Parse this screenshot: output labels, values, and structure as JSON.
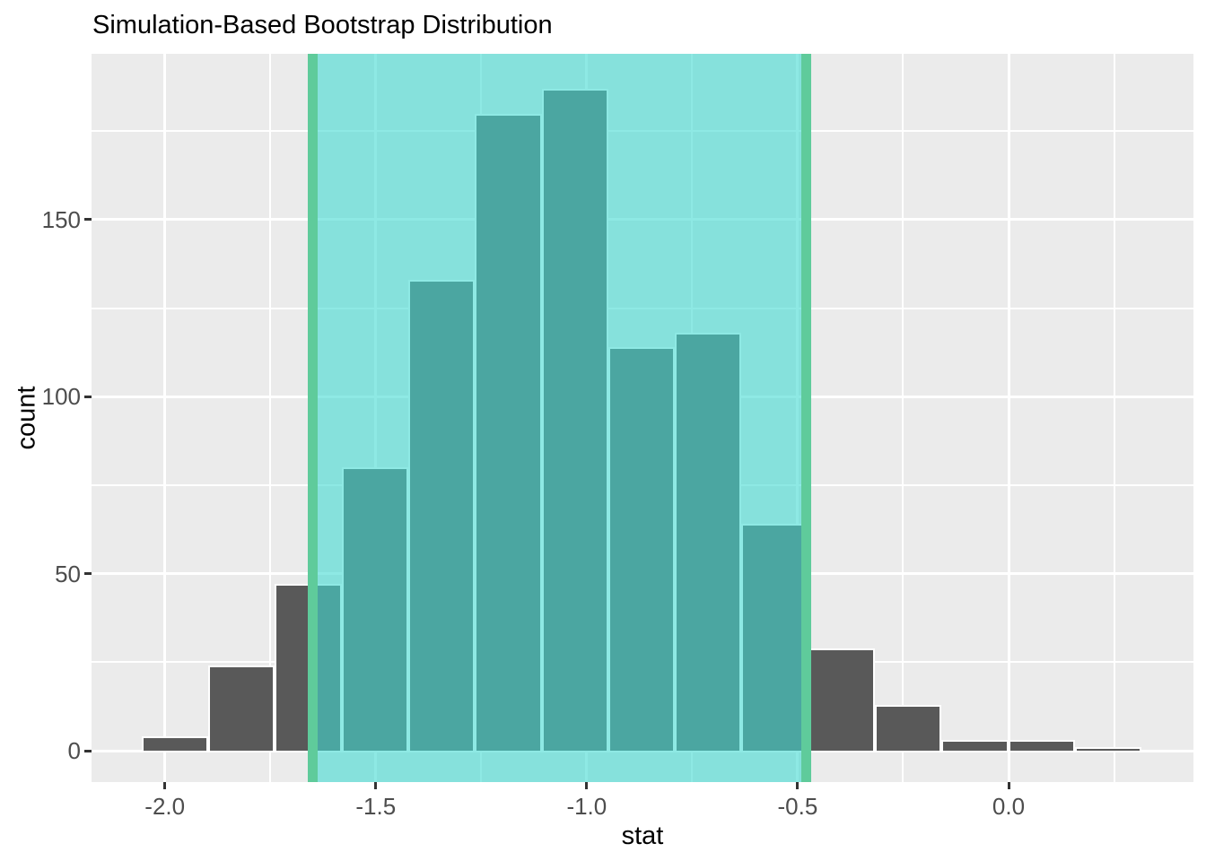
{
  "chart_data": {
    "type": "histogram",
    "title": "Simulation-Based Bootstrap Distribution",
    "xlabel": "stat",
    "ylabel": "count",
    "legend": "none",
    "grid": "major-and-minor-white-on-gray",
    "x_axis_range": [
      -2.17,
      0.44
    ],
    "y_axis_range": [
      0,
      197
    ],
    "x_ticks": [
      {
        "value": -2.0,
        "label": "-2.0"
      },
      {
        "value": -1.5,
        "label": "-1.5"
      },
      {
        "value": -1.0,
        "label": "-1.0"
      },
      {
        "value": -0.5,
        "label": "-0.5"
      },
      {
        "value": 0.0,
        "label": "0.0"
      }
    ],
    "y_ticks": [
      {
        "value": 0,
        "label": "0"
      },
      {
        "value": 50,
        "label": "50"
      },
      {
        "value": 100,
        "label": "100"
      },
      {
        "value": 150,
        "label": "150"
      }
    ],
    "x_minor": [
      -1.75,
      -1.25,
      -0.75,
      -0.25,
      0.25
    ],
    "y_minor": [
      25,
      75,
      125,
      175
    ],
    "bins": [
      {
        "x0": -2.055,
        "x1": -1.897,
        "count": 4
      },
      {
        "x0": -1.897,
        "x1": -1.739,
        "count": 24
      },
      {
        "x0": -1.739,
        "x1": -1.581,
        "count": 47
      },
      {
        "x0": -1.581,
        "x1": -1.423,
        "count": 80
      },
      {
        "x0": -1.423,
        "x1": -1.265,
        "count": 133
      },
      {
        "x0": -1.265,
        "x1": -1.107,
        "count": 180
      },
      {
        "x0": -1.107,
        "x1": -0.949,
        "count": 187
      },
      {
        "x0": -0.949,
        "x1": -0.791,
        "count": 114
      },
      {
        "x0": -0.791,
        "x1": -0.633,
        "count": 118
      },
      {
        "x0": -0.633,
        "x1": -0.475,
        "count": 64
      },
      {
        "x0": -0.475,
        "x1": -0.317,
        "count": 29
      },
      {
        "x0": -0.317,
        "x1": -0.159,
        "count": 13
      },
      {
        "x0": -0.159,
        "x1": -0.001,
        "count": 3
      },
      {
        "x0": -0.001,
        "x1": 0.157,
        "count": 3
      },
      {
        "x0": 0.157,
        "x1": 0.315,
        "count": 1
      }
    ],
    "confidence_interval": {
      "lower": -1.65,
      "upper": -0.48
    },
    "colors": {
      "bar_fill": "#595959",
      "bar_border": "#FFFFFF",
      "bar_fill_shaded_appearance": "#4BAAA2",
      "panel_bg": "#EBEBEB",
      "gridline": "#FFFFFF",
      "shade_fill": "rgba(67,218,210,0.6)",
      "ci_line": "#5FCB9B",
      "tick_label": "#4D4D4D",
      "title_color": "#000000"
    }
  }
}
